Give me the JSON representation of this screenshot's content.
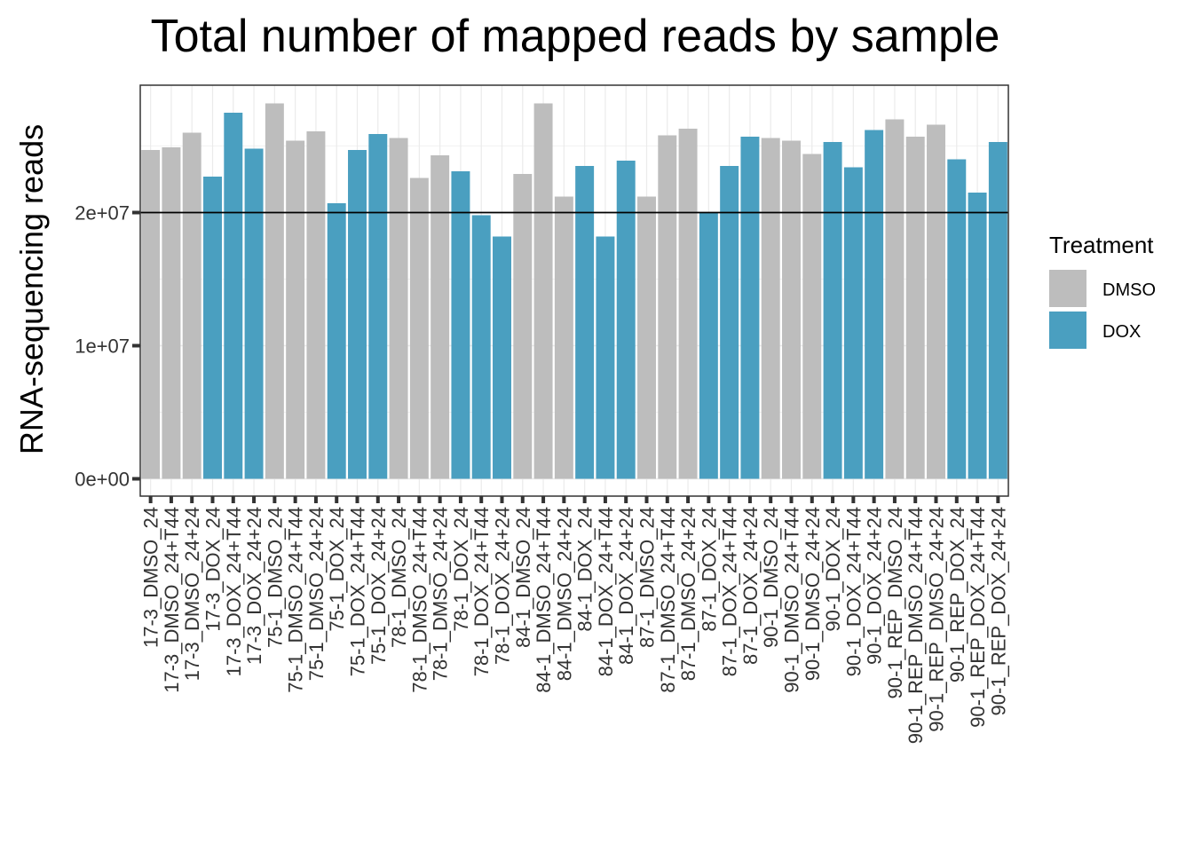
{
  "chart_data": {
    "type": "bar",
    "title": "Total number of mapped reads by sample",
    "xlabel": "",
    "ylabel": "RNA-sequencing reads",
    "ylim": [
      0,
      29000000
    ],
    "yticks": [
      0,
      10000000,
      20000000
    ],
    "ytick_labels": [
      "0e+00",
      "1e+07",
      "2e+07"
    ],
    "hline": 20000000,
    "grid": true,
    "legend": {
      "title": "Treatment",
      "position": "right",
      "items": [
        {
          "label": "DMSO",
          "color": "#BDBDBD"
        },
        {
          "label": "DOX",
          "color": "#4A9FC0"
        }
      ]
    },
    "categories": [
      "17-3_DMSO_24",
      "17-3_DMSO_24+T44",
      "17-3_DMSO_24+24",
      "17-3_DOX_24",
      "17-3_DOX_24+T44",
      "17-3_DOX_24+24",
      "75-1_DMSO_24",
      "75-1_DMSO_24+T44",
      "75-1_DMSO_24+24",
      "75-1_DOX_24",
      "75-1_DOX_24+T44",
      "75-1_DOX_24+24",
      "78-1_DMSO_24",
      "78-1_DMSO_24+T44",
      "78-1_DMSO_24+24",
      "78-1_DOX_24",
      "78-1_DOX_24+T44",
      "78-1_DOX_24+24",
      "84-1_DMSO_24",
      "84-1_DMSO_24+T44",
      "84-1_DMSO_24+24",
      "84-1_DOX_24",
      "84-1_DOX_24+T44",
      "84-1_DOX_24+24",
      "87-1_DMSO_24",
      "87-1_DMSO_24+T44",
      "87-1_DMSO_24+24",
      "87-1_DOX_24",
      "87-1_DOX_24+T44",
      "87-1_DOX_24+24",
      "90-1_DMSO_24",
      "90-1_DMSO_24+T44",
      "90-1_DMSO_24+24",
      "90-1_DOX_24",
      "90-1_DOX_24+T44",
      "90-1_DOX_24+24",
      "90-1_REP_DMSO_24",
      "90-1_REP_DMSO_24+T44",
      "90-1_REP_DMSO_24+24",
      "90-1_REP_DOX_24",
      "90-1_REP_DOX_24+T44",
      "90-1_REP_DOX_24+24"
    ],
    "treatment": [
      "DMSO",
      "DMSO",
      "DMSO",
      "DOX",
      "DOX",
      "DOX",
      "DMSO",
      "DMSO",
      "DMSO",
      "DOX",
      "DOX",
      "DOX",
      "DMSO",
      "DMSO",
      "DMSO",
      "DOX",
      "DOX",
      "DOX",
      "DMSO",
      "DMSO",
      "DMSO",
      "DOX",
      "DOX",
      "DOX",
      "DMSO",
      "DMSO",
      "DMSO",
      "DOX",
      "DOX",
      "DOX",
      "DMSO",
      "DMSO",
      "DMSO",
      "DOX",
      "DOX",
      "DOX",
      "DMSO",
      "DMSO",
      "DMSO",
      "DOX",
      "DOX",
      "DOX"
    ],
    "values": [
      24700000,
      24900000,
      26000000,
      22700000,
      27500000,
      24800000,
      28200000,
      25400000,
      26100000,
      20700000,
      24700000,
      25900000,
      25600000,
      22600000,
      24300000,
      23100000,
      19800000,
      18200000,
      22900000,
      28200000,
      21200000,
      23500000,
      18200000,
      23900000,
      21200000,
      25800000,
      26300000,
      20000000,
      23500000,
      25700000,
      25600000,
      25400000,
      24400000,
      25300000,
      23400000,
      26200000,
      27000000,
      25700000,
      26600000,
      24000000,
      21500000,
      25300000
    ]
  }
}
